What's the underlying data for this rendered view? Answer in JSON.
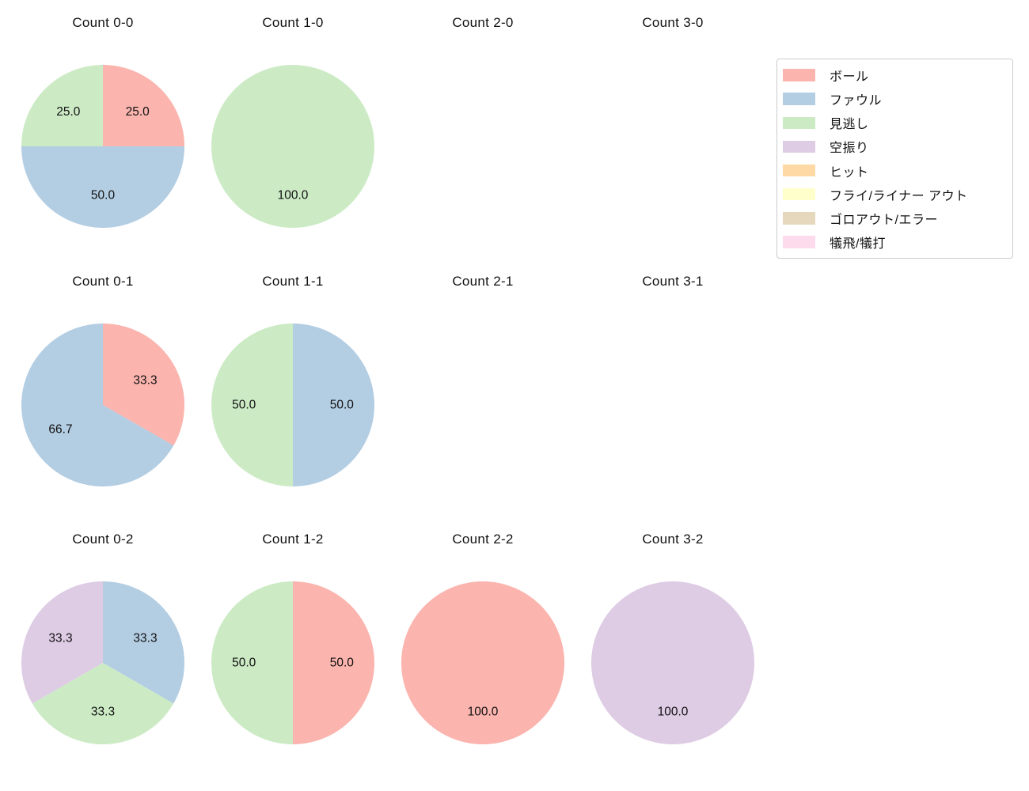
{
  "figure": {
    "background": "#ffffff",
    "text_color": "#111111"
  },
  "legend": {
    "border_color": "#cccccc",
    "background": "#ffffff",
    "items": [
      {
        "label": "ボール",
        "color": "#fbb4ae"
      },
      {
        "label": "ファウル",
        "color": "#b3cde3"
      },
      {
        "label": "見逃し",
        "color": "#ccebc5"
      },
      {
        "label": "空振り",
        "color": "#decbe4"
      },
      {
        "label": "ヒット",
        "color": "#fed9a6"
      },
      {
        "label": "フライ/ライナー アウト",
        "color": "#ffffcc"
      },
      {
        "label": "ゴロアウト/エラー",
        "color": "#e5d8bd"
      },
      {
        "label": "犠飛/犠打",
        "color": "#fddaec"
      }
    ]
  },
  "chart_data": [
    {
      "type": "pie",
      "title": "Count 0-0",
      "start_angle": 90,
      "direction": "clockwise",
      "slices": [
        {
          "label": "ボール",
          "value": 25.0,
          "pct_text": "25.0",
          "color": "#fbb4ae"
        },
        {
          "label": "ファウル",
          "value": 50.0,
          "pct_text": "50.0",
          "color": "#b3cde3"
        },
        {
          "label": "見逃し",
          "value": 25.0,
          "pct_text": "25.0",
          "color": "#ccebc5"
        }
      ]
    },
    {
      "type": "pie",
      "title": "Count 1-0",
      "start_angle": 90,
      "direction": "clockwise",
      "slices": [
        {
          "label": "見逃し",
          "value": 100.0,
          "pct_text": "100.0",
          "color": "#ccebc5"
        }
      ]
    },
    {
      "type": "pie",
      "title": "Count 2-0",
      "start_angle": 90,
      "direction": "clockwise",
      "slices": []
    },
    {
      "type": "pie",
      "title": "Count 3-0",
      "start_angle": 90,
      "direction": "clockwise",
      "slices": []
    },
    {
      "type": "pie",
      "title": "Count 0-1",
      "start_angle": 90,
      "direction": "clockwise",
      "slices": [
        {
          "label": "ボール",
          "value": 33.3,
          "pct_text": "33.3",
          "color": "#fbb4ae"
        },
        {
          "label": "ファウル",
          "value": 66.7,
          "pct_text": "66.7",
          "color": "#b3cde3"
        }
      ]
    },
    {
      "type": "pie",
      "title": "Count 1-1",
      "start_angle": 90,
      "direction": "clockwise",
      "slices": [
        {
          "label": "ファウル",
          "value": 50.0,
          "pct_text": "50.0",
          "color": "#b3cde3"
        },
        {
          "label": "見逃し",
          "value": 50.0,
          "pct_text": "50.0",
          "color": "#ccebc5"
        }
      ]
    },
    {
      "type": "pie",
      "title": "Count 2-1",
      "start_angle": 90,
      "direction": "clockwise",
      "slices": []
    },
    {
      "type": "pie",
      "title": "Count 3-1",
      "start_angle": 90,
      "direction": "clockwise",
      "slices": []
    },
    {
      "type": "pie",
      "title": "Count 0-2",
      "start_angle": 90,
      "direction": "clockwise",
      "slices": [
        {
          "label": "ファウル",
          "value": 33.3,
          "pct_text": "33.3",
          "color": "#b3cde3"
        },
        {
          "label": "見逃し",
          "value": 33.3,
          "pct_text": "33.3",
          "color": "#ccebc5"
        },
        {
          "label": "空振り",
          "value": 33.3,
          "pct_text": "33.3",
          "color": "#decbe4"
        }
      ]
    },
    {
      "type": "pie",
      "title": "Count 1-2",
      "start_angle": 90,
      "direction": "clockwise",
      "slices": [
        {
          "label": "ボール",
          "value": 50.0,
          "pct_text": "50.0",
          "color": "#fbb4ae"
        },
        {
          "label": "見逃し",
          "value": 50.0,
          "pct_text": "50.0",
          "color": "#ccebc5"
        }
      ]
    },
    {
      "type": "pie",
      "title": "Count 2-2",
      "start_angle": 90,
      "direction": "clockwise",
      "slices": [
        {
          "label": "ボール",
          "value": 100.0,
          "pct_text": "100.0",
          "color": "#fbb4ae"
        }
      ]
    },
    {
      "type": "pie",
      "title": "Count 3-2",
      "start_angle": 90,
      "direction": "clockwise",
      "slices": [
        {
          "label": "空振り",
          "value": 100.0,
          "pct_text": "100.0",
          "color": "#decbe4"
        }
      ]
    }
  ]
}
